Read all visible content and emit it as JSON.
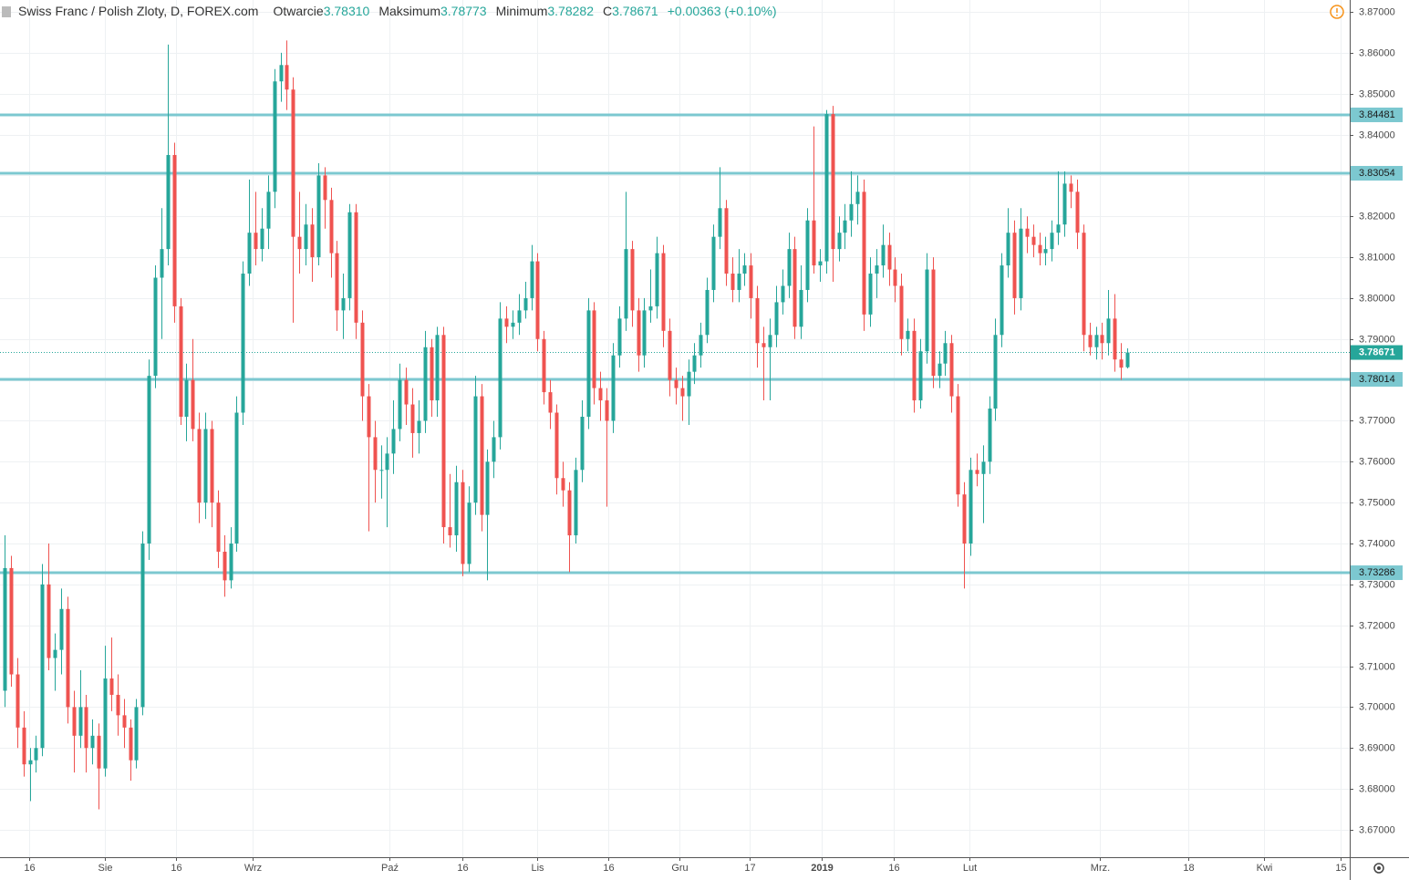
{
  "header": {
    "symbol": "Swiss Franc / Polish Zloty, D, FOREX.com",
    "open_label": "Otwarcie",
    "open": "3.78310",
    "high_label": "Maksimum",
    "high": "3.78773",
    "low_label": "Minimum",
    "low": "3.78282",
    "close_label": "C",
    "close": "3.78671",
    "change": "+0.00363 (+0.10%)"
  },
  "chart_data": {
    "type": "candlestick",
    "up_color": "#26a69a",
    "down_color": "#ef5350",
    "level_color": "#7cc8d0",
    "grid": true,
    "xlim": [
      -0.727,
      214.5
    ],
    "ylim": [
      3.6633,
      3.8729
    ],
    "xticks": [
      {
        "value": 3.9,
        "label": "16"
      },
      {
        "value": 16.0,
        "label": "Sie"
      },
      {
        "value": 27.3,
        "label": "16"
      },
      {
        "value": 39.6,
        "label": "Wrz"
      },
      {
        "value": 61.4,
        "label": "Paź"
      },
      {
        "value": 73.0,
        "label": "16"
      },
      {
        "value": 84.9,
        "label": "Lis"
      },
      {
        "value": 96.3,
        "label": "16"
      },
      {
        "value": 107.6,
        "label": "Gru"
      },
      {
        "value": 118.8,
        "label": "17"
      },
      {
        "value": 130.3,
        "label": "2019"
      },
      {
        "value": 141.8,
        "label": "16"
      },
      {
        "value": 153.8,
        "label": "Lut"
      },
      {
        "value": 174.6,
        "label": "Mrz."
      },
      {
        "value": 188.7,
        "label": "18"
      },
      {
        "value": 200.8,
        "label": "Kwi"
      },
      {
        "value": 213.0,
        "label": "15"
      }
    ],
    "yticks": [
      {
        "value": 3.67,
        "label": "3.67000"
      },
      {
        "value": 3.68,
        "label": "3.68000"
      },
      {
        "value": 3.69,
        "label": "3.69000"
      },
      {
        "value": 3.7,
        "label": "3.70000"
      },
      {
        "value": 3.71,
        "label": "3.71000"
      },
      {
        "value": 3.72,
        "label": "3.72000"
      },
      {
        "value": 3.73,
        "label": "3.73000"
      },
      {
        "value": 3.74,
        "label": "3.74000"
      },
      {
        "value": 3.75,
        "label": "3.75000"
      },
      {
        "value": 3.76,
        "label": "3.76000"
      },
      {
        "value": 3.77,
        "label": "3.77000"
      },
      {
        "value": 3.78,
        "label": "3.78000"
      },
      {
        "value": 3.79,
        "label": "3.79000"
      },
      {
        "value": 3.8,
        "label": "3.80000"
      },
      {
        "value": 3.81,
        "label": "3.81000"
      },
      {
        "value": 3.82,
        "label": "3.82000"
      },
      {
        "value": 3.83,
        "label": "3.83000"
      },
      {
        "value": 3.84,
        "label": "3.84000"
      },
      {
        "value": 3.85,
        "label": "3.85000"
      },
      {
        "value": 3.86,
        "label": "3.86000"
      },
      {
        "value": 3.87,
        "label": "3.87000"
      }
    ],
    "levels": [
      3.84481,
      3.83054,
      3.78014,
      3.73286
    ],
    "candles": [
      [
        3.704,
        3.742,
        3.7,
        3.734
      ],
      [
        3.734,
        3.737,
        3.705,
        3.708
      ],
      [
        3.708,
        3.712,
        3.69,
        3.695
      ],
      [
        3.695,
        3.699,
        3.683,
        3.686
      ],
      [
        3.686,
        3.69,
        3.677,
        3.687
      ],
      [
        3.687,
        3.693,
        3.684,
        3.69
      ],
      [
        3.69,
        3.735,
        3.688,
        3.73
      ],
      [
        3.73,
        3.74,
        3.709,
        3.712
      ],
      [
        3.712,
        3.718,
        3.704,
        3.714
      ],
      [
        3.714,
        3.729,
        3.708,
        3.724
      ],
      [
        3.724,
        3.727,
        3.696,
        3.7
      ],
      [
        3.7,
        3.704,
        3.684,
        3.693
      ],
      [
        3.693,
        3.709,
        3.69,
        3.7
      ],
      [
        3.7,
        3.703,
        3.684,
        3.69
      ],
      [
        3.69,
        3.697,
        3.686,
        3.693
      ],
      [
        3.693,
        3.696,
        3.675,
        3.685
      ],
      [
        3.685,
        3.715,
        3.683,
        3.707
      ],
      [
        3.707,
        3.717,
        3.699,
        3.703
      ],
      [
        3.703,
        3.708,
        3.693,
        3.698
      ],
      [
        3.698,
        3.702,
        3.69,
        3.695
      ],
      [
        3.695,
        3.697,
        3.682,
        3.687
      ],
      [
        3.687,
        3.702,
        3.685,
        3.7
      ],
      [
        3.7,
        3.743,
        3.698,
        3.74
      ],
      [
        3.74,
        3.785,
        3.736,
        3.781
      ],
      [
        3.781,
        3.808,
        3.778,
        3.805
      ],
      [
        3.805,
        3.822,
        3.79,
        3.812
      ],
      [
        3.812,
        3.862,
        3.808,
        3.835
      ],
      [
        3.835,
        3.838,
        3.794,
        3.798
      ],
      [
        3.798,
        3.8,
        3.769,
        3.771
      ],
      [
        3.771,
        3.784,
        3.765,
        3.78
      ],
      [
        3.78,
        3.79,
        3.765,
        3.768
      ],
      [
        3.768,
        3.772,
        3.745,
        3.75
      ],
      [
        3.75,
        3.772,
        3.746,
        3.768
      ],
      [
        3.768,
        3.77,
        3.744,
        3.75
      ],
      [
        3.75,
        3.753,
        3.734,
        3.738
      ],
      [
        3.738,
        3.742,
        3.727,
        3.731
      ],
      [
        3.731,
        3.744,
        3.729,
        3.74
      ],
      [
        3.74,
        3.776,
        3.738,
        3.772
      ],
      [
        3.772,
        3.809,
        3.769,
        3.806
      ],
      [
        3.806,
        3.829,
        3.803,
        3.816
      ],
      [
        3.816,
        3.826,
        3.808,
        3.812
      ],
      [
        3.812,
        3.822,
        3.809,
        3.817
      ],
      [
        3.817,
        3.83,
        3.812,
        3.826
      ],
      [
        3.826,
        3.856,
        3.822,
        3.853
      ],
      [
        3.853,
        3.86,
        3.848,
        3.857
      ],
      [
        3.857,
        3.863,
        3.846,
        3.851
      ],
      [
        3.851,
        3.854,
        3.794,
        3.815
      ],
      [
        3.815,
        3.826,
        3.806,
        3.812
      ],
      [
        3.812,
        3.823,
        3.808,
        3.818
      ],
      [
        3.818,
        3.822,
        3.804,
        3.81
      ],
      [
        3.81,
        3.833,
        3.808,
        3.83
      ],
      [
        3.83,
        3.832,
        3.817,
        3.824
      ],
      [
        3.824,
        3.827,
        3.805,
        3.811
      ],
      [
        3.811,
        3.814,
        3.792,
        3.797
      ],
      [
        3.797,
        3.806,
        3.79,
        3.8
      ],
      [
        3.8,
        3.823,
        3.797,
        3.821
      ],
      [
        3.821,
        3.823,
        3.79,
        3.794
      ],
      [
        3.794,
        3.797,
        3.77,
        3.776
      ],
      [
        3.776,
        3.779,
        3.743,
        3.766
      ],
      [
        3.766,
        3.77,
        3.75,
        3.758
      ],
      [
        3.758,
        3.764,
        3.751,
        3.758
      ],
      [
        3.758,
        3.766,
        3.744,
        3.762
      ],
      [
        3.762,
        3.775,
        3.757,
        3.768
      ],
      [
        3.768,
        3.784,
        3.765,
        3.78
      ],
      [
        3.78,
        3.783,
        3.769,
        3.774
      ],
      [
        3.774,
        3.778,
        3.761,
        3.767
      ],
      [
        3.767,
        3.775,
        3.762,
        3.77
      ],
      [
        3.77,
        3.792,
        3.767,
        3.788
      ],
      [
        3.788,
        3.79,
        3.771,
        3.775
      ],
      [
        3.775,
        3.793,
        3.771,
        3.791
      ],
      [
        3.791,
        3.793,
        3.74,
        3.744
      ],
      [
        3.744,
        3.757,
        3.739,
        3.742
      ],
      [
        3.742,
        3.759,
        3.738,
        3.755
      ],
      [
        3.755,
        3.758,
        3.732,
        3.735
      ],
      [
        3.735,
        3.754,
        3.733,
        3.75
      ],
      [
        3.75,
        3.781,
        3.747,
        3.776
      ],
      [
        3.776,
        3.779,
        3.743,
        3.747
      ],
      [
        3.747,
        3.763,
        3.731,
        3.76
      ],
      [
        3.76,
        3.77,
        3.756,
        3.766
      ],
      [
        3.766,
        3.799,
        3.763,
        3.795
      ],
      [
        3.795,
        3.798,
        3.789,
        3.793
      ],
      [
        3.793,
        3.797,
        3.79,
        3.794
      ],
      [
        3.794,
        3.801,
        3.791,
        3.797
      ],
      [
        3.797,
        3.804,
        3.795,
        3.8
      ],
      [
        3.8,
        3.813,
        3.797,
        3.809
      ],
      [
        3.809,
        3.811,
        3.787,
        3.79
      ],
      [
        3.79,
        3.792,
        3.774,
        3.777
      ],
      [
        3.777,
        3.78,
        3.768,
        3.772
      ],
      [
        3.772,
        3.774,
        3.752,
        3.756
      ],
      [
        3.756,
        3.76,
        3.749,
        3.753
      ],
      [
        3.753,
        3.755,
        3.733,
        3.742
      ],
      [
        3.742,
        3.761,
        3.74,
        3.758
      ],
      [
        3.758,
        3.775,
        3.755,
        3.771
      ],
      [
        3.771,
        3.8,
        3.768,
        3.797
      ],
      [
        3.797,
        3.799,
        3.774,
        3.778
      ],
      [
        3.778,
        3.782,
        3.77,
        3.775
      ],
      [
        3.775,
        3.778,
        3.749,
        3.77
      ],
      [
        3.77,
        3.789,
        3.767,
        3.786
      ],
      [
        3.786,
        3.798,
        3.783,
        3.795
      ],
      [
        3.795,
        3.826,
        3.792,
        3.812
      ],
      [
        3.812,
        3.814,
        3.793,
        3.797
      ],
      [
        3.797,
        3.8,
        3.782,
        3.786
      ],
      [
        3.786,
        3.8,
        3.783,
        3.797
      ],
      [
        3.797,
        3.807,
        3.794,
        3.798
      ],
      [
        3.798,
        3.815,
        3.795,
        3.811
      ],
      [
        3.811,
        3.813,
        3.788,
        3.792
      ],
      [
        3.792,
        3.795,
        3.776,
        3.78
      ],
      [
        3.78,
        3.783,
        3.774,
        3.778
      ],
      [
        3.778,
        3.781,
        3.77,
        3.776
      ],
      [
        3.776,
        3.785,
        3.769,
        3.782
      ],
      [
        3.782,
        3.789,
        3.779,
        3.786
      ],
      [
        3.786,
        3.794,
        3.783,
        3.791
      ],
      [
        3.791,
        3.805,
        3.789,
        3.802
      ],
      [
        3.802,
        3.818,
        3.799,
        3.815
      ],
      [
        3.815,
        3.832,
        3.812,
        3.822
      ],
      [
        3.822,
        3.824,
        3.803,
        3.806
      ],
      [
        3.806,
        3.81,
        3.799,
        3.802
      ],
      [
        3.802,
        3.812,
        3.799,
        3.806
      ],
      [
        3.806,
        3.811,
        3.803,
        3.808
      ],
      [
        3.808,
        3.811,
        3.795,
        3.8
      ],
      [
        3.8,
        3.803,
        3.783,
        3.789
      ],
      [
        3.789,
        3.793,
        3.775,
        3.788
      ],
      [
        3.788,
        3.795,
        3.775,
        3.791
      ],
      [
        3.791,
        3.803,
        3.788,
        3.799
      ],
      [
        3.799,
        3.807,
        3.796,
        3.803
      ],
      [
        3.803,
        3.816,
        3.8,
        3.812
      ],
      [
        3.812,
        3.815,
        3.79,
        3.793
      ],
      [
        3.793,
        3.808,
        3.79,
        3.802
      ],
      [
        3.802,
        3.822,
        3.799,
        3.819
      ],
      [
        3.819,
        3.842,
        3.806,
        3.808
      ],
      [
        3.808,
        3.812,
        3.804,
        3.809
      ],
      [
        3.809,
        3.846,
        3.806,
        3.845
      ],
      [
        3.845,
        3.847,
        3.804,
        3.812
      ],
      [
        3.812,
        3.82,
        3.809,
        3.816
      ],
      [
        3.816,
        3.823,
        3.812,
        3.819
      ],
      [
        3.819,
        3.831,
        3.815,
        3.823
      ],
      [
        3.823,
        3.83,
        3.818,
        3.826
      ],
      [
        3.826,
        3.829,
        3.792,
        3.796
      ],
      [
        3.796,
        3.81,
        3.793,
        3.806
      ],
      [
        3.806,
        3.812,
        3.8,
        3.808
      ],
      [
        3.808,
        3.818,
        3.805,
        3.813
      ],
      [
        3.813,
        3.816,
        3.803,
        3.807
      ],
      [
        3.807,
        3.81,
        3.799,
        3.803
      ],
      [
        3.803,
        3.806,
        3.786,
        3.79
      ],
      [
        3.79,
        3.795,
        3.787,
        3.792
      ],
      [
        3.792,
        3.795,
        3.772,
        3.775
      ],
      [
        3.775,
        3.79,
        3.773,
        3.787
      ],
      [
        3.787,
        3.811,
        3.784,
        3.807
      ],
      [
        3.807,
        3.81,
        3.778,
        3.781
      ],
      [
        3.781,
        3.787,
        3.778,
        3.784
      ],
      [
        3.784,
        3.792,
        3.781,
        3.789
      ],
      [
        3.789,
        3.791,
        3.772,
        3.776
      ],
      [
        3.776,
        3.779,
        3.749,
        3.752
      ],
      [
        3.752,
        3.755,
        3.729,
        3.74
      ],
      [
        3.74,
        3.761,
        3.737,
        3.758
      ],
      [
        3.758,
        3.762,
        3.754,
        3.757
      ],
      [
        3.757,
        3.764,
        3.745,
        3.76
      ],
      [
        3.76,
        3.776,
        3.757,
        3.773
      ],
      [
        3.773,
        3.795,
        3.77,
        3.791
      ],
      [
        3.791,
        3.811,
        3.788,
        3.808
      ],
      [
        3.808,
        3.822,
        3.805,
        3.816
      ],
      [
        3.816,
        3.819,
        3.796,
        3.8
      ],
      [
        3.8,
        3.822,
        3.797,
        3.817
      ],
      [
        3.817,
        3.82,
        3.811,
        3.815
      ],
      [
        3.815,
        3.818,
        3.81,
        3.813
      ],
      [
        3.813,
        3.816,
        3.808,
        3.811
      ],
      [
        3.811,
        3.815,
        3.808,
        3.812
      ],
      [
        3.812,
        3.819,
        3.809,
        3.816
      ],
      [
        3.816,
        3.831,
        3.813,
        3.818
      ],
      [
        3.818,
        3.831,
        3.815,
        3.828
      ],
      [
        3.828,
        3.83,
        3.822,
        3.826
      ],
      [
        3.826,
        3.829,
        3.812,
        3.816
      ],
      [
        3.816,
        3.818,
        3.787,
        3.791
      ],
      [
        3.791,
        3.794,
        3.786,
        3.788
      ],
      [
        3.788,
        3.793,
        3.785,
        3.791
      ],
      [
        3.791,
        3.794,
        3.785,
        3.789
      ],
      [
        3.789,
        3.802,
        3.786,
        3.795
      ],
      [
        3.795,
        3.801,
        3.782,
        3.785
      ],
      [
        3.785,
        3.789,
        3.78,
        3.783
      ],
      [
        3.7831,
        3.78773,
        3.78282,
        3.78671
      ]
    ]
  }
}
